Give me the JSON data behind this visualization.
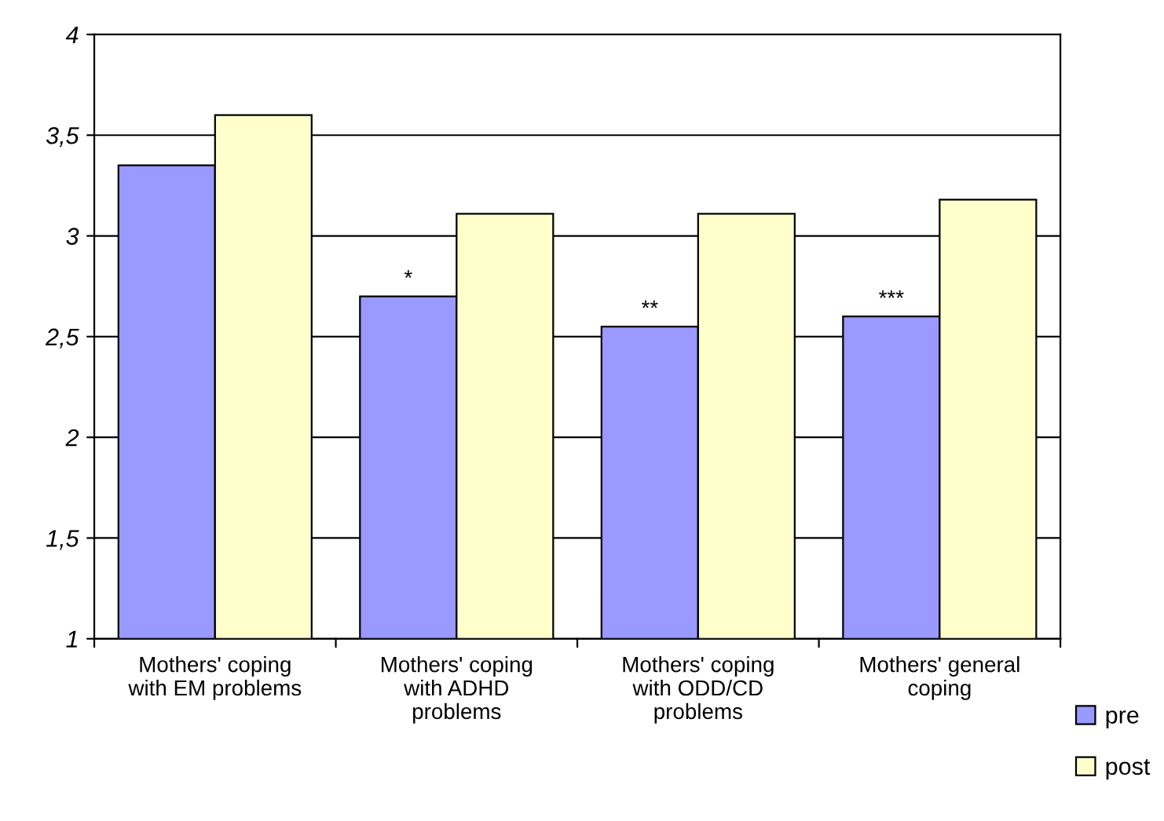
{
  "chart_data": {
    "type": "bar",
    "categories": [
      "Mothers' coping\nwith EM problems",
      "Mothers' coping\nwith ADHD\nproblems",
      "Mothers' coping\nwith ODD/CD\nproblems",
      "Mothers' general\ncoping"
    ],
    "series": [
      {
        "name": "pre",
        "color": "#9999ff",
        "values": [
          3.35,
          2.7,
          2.55,
          2.6
        ]
      },
      {
        "name": "post",
        "color": "#ffffcc",
        "values": [
          3.6,
          3.11,
          3.11,
          3.18
        ]
      }
    ],
    "ylim": [
      1,
      4
    ],
    "yticks": [
      {
        "value": 1,
        "label": "1"
      },
      {
        "value": 1.5,
        "label": "1,5"
      },
      {
        "value": 2,
        "label": "2"
      },
      {
        "value": 2.5,
        "label": "2,5"
      },
      {
        "value": 3,
        "label": "3"
      },
      {
        "value": 3.5,
        "label": "3,5"
      },
      {
        "value": 4,
        "label": "4"
      }
    ],
    "grid": "y",
    "legend": "bottom right",
    "annotations": [
      {
        "text": "*",
        "x": "Mothers' coping\nwith ADHD\nproblems",
        "y": 2.7
      },
      {
        "text": "**",
        "x": "Mothers' coping\nwith ODD/CD\nproblems",
        "y": 2.55
      },
      {
        "text": "***",
        "x": "Mothers' general\ncoping",
        "y": 2.6
      }
    ]
  }
}
